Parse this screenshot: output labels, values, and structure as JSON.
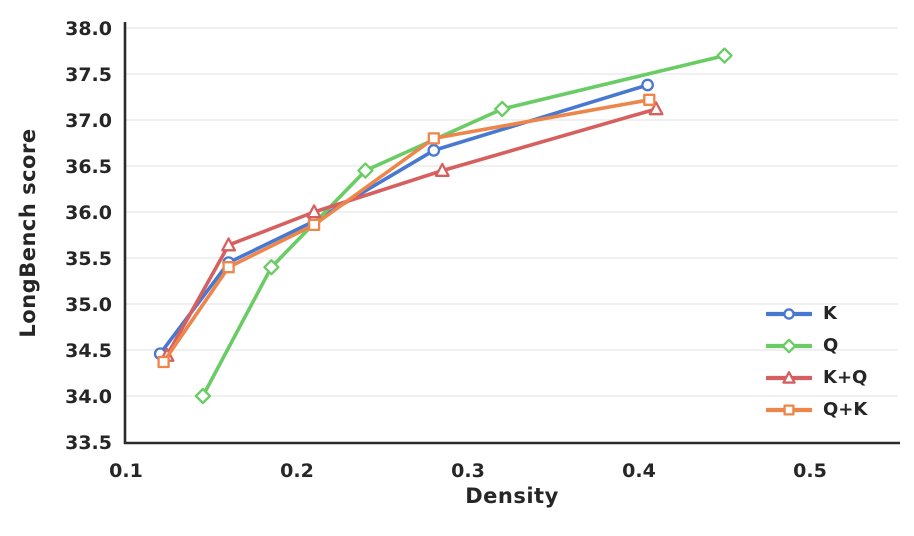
{
  "style": {
    "background": "#ffffff",
    "text_color": "#262626",
    "spine_color": "#2b2b2b",
    "grid_color": "#ececec"
  },
  "chart_data": {
    "type": "line",
    "title": "",
    "xlabel": "Density",
    "ylabel": "LongBench score",
    "xlim": [
      0.1,
      0.553
    ],
    "ylim": [
      33.5,
      38.0
    ],
    "x_ticks": [
      0.1,
      0.2,
      0.3,
      0.4,
      0.5
    ],
    "x_tick_labels": [
      "0.1",
      "0.2",
      "0.3",
      "0.4",
      "0.5"
    ],
    "y_ticks": [
      33.5,
      34.0,
      34.5,
      35.0,
      35.5,
      36.0,
      36.5,
      37.0,
      37.5,
      38.0
    ],
    "y_tick_labels": [
      "33.5",
      "34.0",
      "34.5",
      "35.0",
      "35.5",
      "36.0",
      "36.5",
      "37.0",
      "37.5",
      "38.0"
    ],
    "grid": "horizontal",
    "legend_position": "lower right",
    "series": [
      {
        "name": "K",
        "color": "#4878D0",
        "marker": "circle",
        "points": [
          [
            0.12,
            34.46
          ],
          [
            0.16,
            35.45
          ],
          [
            0.21,
            35.9
          ],
          [
            0.28,
            36.67
          ],
          [
            0.405,
            37.38
          ]
        ]
      },
      {
        "name": "Q",
        "color": "#6ACC64",
        "marker": "diamond",
        "points": [
          [
            0.145,
            34.0
          ],
          [
            0.185,
            35.4
          ],
          [
            0.24,
            36.45
          ],
          [
            0.32,
            37.12
          ],
          [
            0.45,
            37.7
          ]
        ]
      },
      {
        "name": "K+Q",
        "color": "#D65F5F",
        "marker": "triangle",
        "points": [
          [
            0.124,
            34.44
          ],
          [
            0.16,
            35.64
          ],
          [
            0.21,
            36.0
          ],
          [
            0.285,
            36.45
          ],
          [
            0.41,
            37.12
          ]
        ]
      },
      {
        "name": "Q+K",
        "color": "#EE854A",
        "marker": "square",
        "points": [
          [
            0.122,
            34.37
          ],
          [
            0.16,
            35.4
          ],
          [
            0.21,
            35.86
          ],
          [
            0.28,
            36.8
          ],
          [
            0.406,
            37.22
          ]
        ]
      }
    ]
  }
}
